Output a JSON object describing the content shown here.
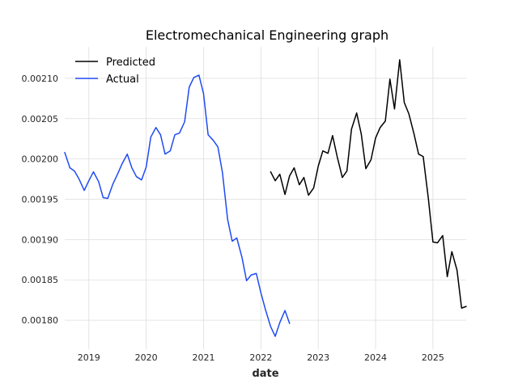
{
  "chart_data": {
    "type": "line",
    "title": "Electromechanical Engineering graph",
    "xlabel": "date",
    "ylabel": "",
    "xlim": [
      2018.58,
      2025.58
    ],
    "ylim": [
      0.001764,
      0.002139
    ],
    "grid": true,
    "legend_position": "top-left",
    "x_ticks": [
      {
        "value": 2019,
        "label": "2019"
      },
      {
        "value": 2020,
        "label": "2020"
      },
      {
        "value": 2021,
        "label": "2021"
      },
      {
        "value": 2022,
        "label": "2022"
      },
      {
        "value": 2023,
        "label": "2023"
      },
      {
        "value": 2024,
        "label": "2024"
      },
      {
        "value": 2025,
        "label": "2025"
      }
    ],
    "y_ticks": [
      {
        "value": 0.0018,
        "label": "0.00180"
      },
      {
        "value": 0.00185,
        "label": "0.00185"
      },
      {
        "value": 0.0019,
        "label": "0.00190"
      },
      {
        "value": 0.00195,
        "label": "0.00195"
      },
      {
        "value": 0.002,
        "label": "0.00200"
      },
      {
        "value": 0.00205,
        "label": "0.00205"
      },
      {
        "value": 0.0021,
        "label": "0.00210"
      }
    ],
    "series": [
      {
        "name": "Predicted",
        "color": "#000000",
        "x": [
          2022.17,
          2022.25,
          2022.33,
          2022.42,
          2022.5,
          2022.58,
          2022.67,
          2022.75,
          2022.83,
          2022.92,
          2023.0,
          2023.08,
          2023.17,
          2023.25,
          2023.33,
          2023.42,
          2023.5,
          2023.58,
          2023.67,
          2023.75,
          2023.83,
          2023.92,
          2024.0,
          2024.08,
          2024.17,
          2024.25,
          2024.33,
          2024.42,
          2024.5,
          2024.58,
          2024.67,
          2024.75,
          2024.83,
          2024.92,
          2025.0,
          2025.08,
          2025.17,
          2025.25,
          2025.33,
          2025.42,
          2025.5,
          2025.58
        ],
        "y": [
          0.001984,
          0.001973,
          0.001981,
          0.001956,
          0.001979,
          0.001989,
          0.001968,
          0.001977,
          0.001955,
          0.001964,
          0.001991,
          0.00201,
          0.002007,
          0.002029,
          0.002003,
          0.001977,
          0.001985,
          0.002037,
          0.002057,
          0.002031,
          0.001988,
          0.001999,
          0.002026,
          0.002039,
          0.002047,
          0.002099,
          0.002062,
          0.002123,
          0.00207,
          0.002056,
          0.002031,
          0.002006,
          0.002003,
          0.001951,
          0.001897,
          0.001896,
          0.001905,
          0.001854,
          0.001885,
          0.001862,
          0.001815,
          0.001817
        ]
      },
      {
        "name": "Actual",
        "color": "#1f4bf0",
        "x": [
          2018.58,
          2018.67,
          2018.75,
          2018.83,
          2018.92,
          2019.0,
          2019.08,
          2019.17,
          2019.25,
          2019.33,
          2019.42,
          2019.5,
          2019.58,
          2019.67,
          2019.75,
          2019.83,
          2019.92,
          2020.0,
          2020.08,
          2020.17,
          2020.25,
          2020.33,
          2020.42,
          2020.5,
          2020.58,
          2020.67,
          2020.75,
          2020.83,
          2020.92,
          2021.0,
          2021.08,
          2021.17,
          2021.25,
          2021.33,
          2021.42,
          2021.5,
          2021.58,
          2021.67,
          2021.75,
          2021.83,
          2021.92,
          2022.0,
          2022.08,
          2022.17,
          2022.25,
          2022.33,
          2022.42,
          2022.5
        ],
        "y": [
          0.002008,
          0.001989,
          0.001985,
          0.001975,
          0.001961,
          0.001973,
          0.001984,
          0.001972,
          0.001952,
          0.001951,
          0.001969,
          0.001981,
          0.001994,
          0.002006,
          0.001989,
          0.001978,
          0.001974,
          0.00199,
          0.002027,
          0.002039,
          0.00203,
          0.002006,
          0.00201,
          0.00203,
          0.002032,
          0.002046,
          0.002089,
          0.002101,
          0.002104,
          0.002081,
          0.00203,
          0.002023,
          0.002015,
          0.001983,
          0.001925,
          0.001898,
          0.001902,
          0.001878,
          0.001849,
          0.001856,
          0.001858,
          0.001834,
          0.001813,
          0.001792,
          0.00178,
          0.001797,
          0.001812,
          0.001796
        ]
      }
    ]
  }
}
